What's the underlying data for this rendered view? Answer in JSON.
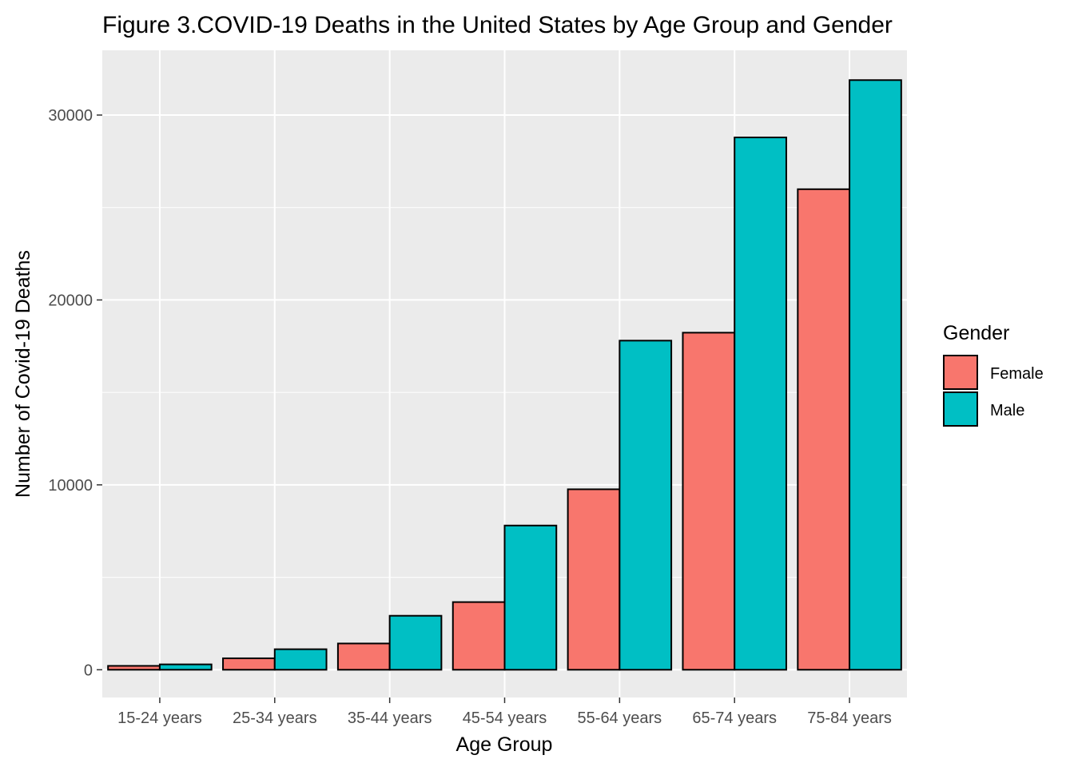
{
  "chart_data": {
    "type": "bar",
    "title": "Figure 3.COVID-19 Deaths in the United States by Age Group and Gender",
    "xlabel": "Age Group",
    "ylabel": "Number of Covid-19 Deaths",
    "categories": [
      "15-24 years",
      "25-34 years",
      "35-44 years",
      "45-54 years",
      "55-64 years",
      "65-74 years",
      "75-84 years"
    ],
    "series": [
      {
        "name": "Female",
        "color": "#F8766D",
        "values": [
          210,
          620,
          1420,
          3660,
          9760,
          18230,
          25990
        ]
      },
      {
        "name": "Male",
        "color": "#00BFC4",
        "values": [
          290,
          1110,
          2920,
          7800,
          17800,
          28790,
          31890
        ]
      }
    ],
    "ylim": [
      -1500,
      33500
    ],
    "yticks": [
      0,
      10000,
      20000,
      30000
    ],
    "ytick_labels": [
      "0",
      "10000",
      "20000",
      "30000"
    ],
    "grid": true,
    "panel_background": "#EBEBEB",
    "legend": {
      "title": "Gender",
      "position": "right"
    }
  }
}
